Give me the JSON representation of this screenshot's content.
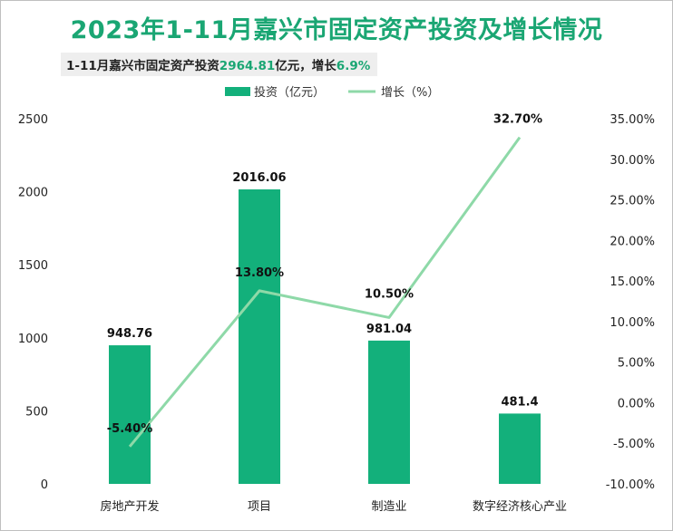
{
  "header": {
    "title": "2023年1-11月嘉兴市固定资产投资及增长情况",
    "subtitle_prefix": "1-11月嘉兴市固定资产投资",
    "subtitle_value": "2964.81",
    "subtitle_mid": "亿元，增长",
    "subtitle_growth": "6.9%"
  },
  "colors": {
    "title": "#1aa673",
    "bar": "#13b07b",
    "line": "#8ed9a8",
    "highlight": "#1aa673"
  },
  "chart_data": {
    "type": "bar",
    "categories": [
      "房地产开发",
      "项目",
      "制造业",
      "数字经济核心产业"
    ],
    "series": [
      {
        "name": "投资（亿元）",
        "type": "bar",
        "axis": "left",
        "values": [
          948.76,
          2016.06,
          981.04,
          481.4
        ]
      },
      {
        "name": "增长（%）",
        "type": "line",
        "axis": "right",
        "values": [
          -5.4,
          13.8,
          10.5,
          32.7
        ]
      }
    ],
    "bar_labels": [
      "948.76",
      "2016.06",
      "981.04",
      "481.4"
    ],
    "line_labels": [
      "-5.40%",
      "13.80%",
      "10.50%",
      "32.70%"
    ],
    "y_left": {
      "range": [
        0,
        2500
      ],
      "ticks": [
        "0",
        "500",
        "1000",
        "1500",
        "2000",
        "2500"
      ]
    },
    "y_right": {
      "range": [
        -10,
        35
      ],
      "ticks": [
        "-10.00%",
        "-5.00%",
        "0.00%",
        "5.00%",
        "10.00%",
        "15.00%",
        "20.00%",
        "25.00%",
        "30.00%",
        "35.00%"
      ]
    },
    "grid": false,
    "legend_position": "top-center"
  }
}
